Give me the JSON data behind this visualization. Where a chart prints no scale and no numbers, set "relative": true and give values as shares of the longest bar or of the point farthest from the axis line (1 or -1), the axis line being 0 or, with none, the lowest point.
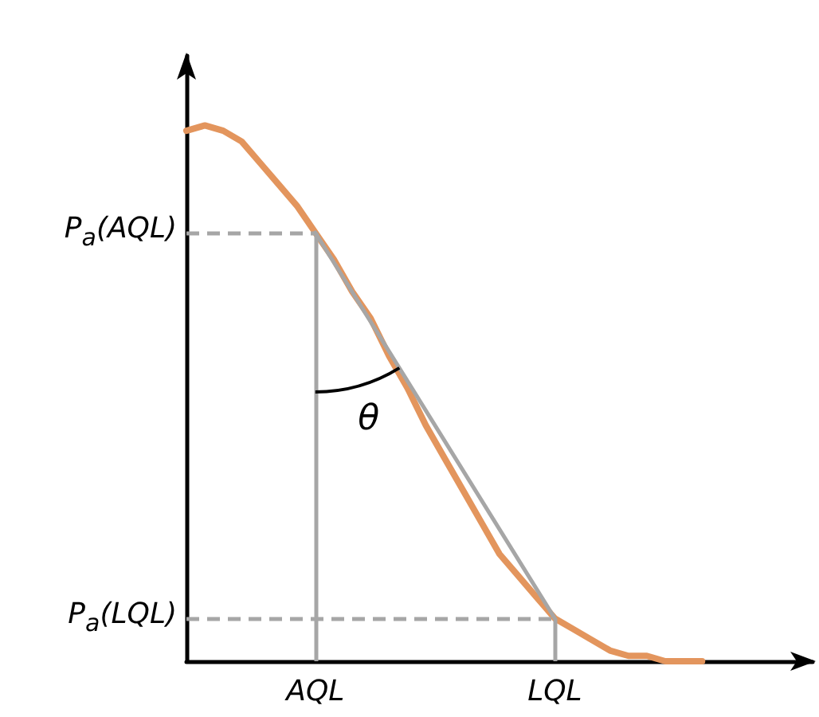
{
  "chart_data": {
    "type": "line",
    "relative": true,
    "categories": [
      null,
      null,
      null,
      null,
      null,
      null,
      null,
      "AQL",
      null,
      null,
      null,
      null,
      null,
      null,
      null,
      null,
      null,
      null,
      null,
      null,
      "LQL",
      null,
      null,
      null,
      null,
      null,
      null,
      null,
      null,
      null,
      null,
      null,
      null,
      null,
      null
    ],
    "series": [
      {
        "color": "#e3955d",
        "values": [
          0.99,
          1.0,
          0.99,
          0.97,
          0.93,
          0.89,
          0.85,
          0.8,
          0.75,
          0.69,
          0.64,
          0.57,
          0.51,
          0.44,
          0.38,
          0.32,
          0.26,
          0.2,
          0.16,
          0.12,
          0.08,
          0.06,
          0.04,
          0.02,
          0.01,
          0.01,
          0,
          0,
          0,
          null,
          null,
          null,
          null,
          null,
          null
        ]
      },
      {
        "type": "line",
        "color": "#a6a6a6",
        "x": [
          "AQL",
          "LQL"
        ],
        "values": [
          0.8,
          0.08
        ]
      }
    ],
    "ref_lines": [
      {
        "axis": "y",
        "value": 0.8,
        "label": "P$_{a}$(AQL)",
        "color": "#a6a6a6",
        "line_style": "dashed"
      },
      {
        "axis": "y",
        "value": 0.08,
        "label": "P$_{a}$(LQL)",
        "color": "#a6a6a6",
        "line_style": "dashed"
      },
      {
        "axis": "x",
        "value": "AQL",
        "color": "#a6a6a6",
        "line_style": "solid"
      },
      {
        "axis": "x",
        "value": "LQL",
        "color": "#a6a6a6",
        "line_style": "solid"
      }
    ],
    "annotations": [
      "θ"
    ],
    "marker": "none",
    "grid": false
  }
}
